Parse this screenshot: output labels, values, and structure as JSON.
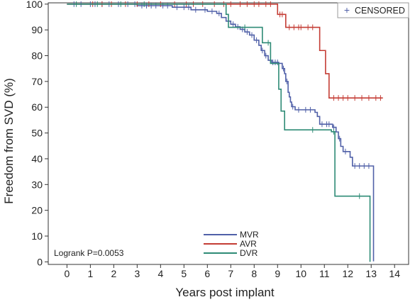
{
  "chart_data": {
    "type": "line",
    "subtype": "kaplan-meier",
    "xlabel": "Years post implant",
    "ylabel": "Freedom from SVD (%)",
    "xlim": [
      -0.8,
      14.6
    ],
    "ylim": [
      -1,
      100.5
    ],
    "x_ticks": [
      "0",
      "1",
      "2",
      "3",
      "4",
      "5",
      "6",
      "7",
      "8",
      "9",
      "10",
      "11",
      "12",
      "13",
      "14"
    ],
    "y_ticks": [
      "0",
      "10",
      "20",
      "30",
      "40",
      "50",
      "60",
      "70",
      "80",
      "90",
      "100"
    ],
    "grid": false,
    "legend_top_right": {
      "marker": "+",
      "label": "CENSORED"
    },
    "legend_position": "bottom-center",
    "annotation": "Logrank P=0.0053",
    "series": [
      {
        "name": "MVR",
        "color": "#5060a8",
        "steps": [
          [
            0,
            100
          ],
          [
            3,
            99.4
          ],
          [
            4.5,
            98.8
          ],
          [
            5.3,
            97.8
          ],
          [
            6,
            97.2
          ],
          [
            6.4,
            96.4
          ],
          [
            6.6,
            94.8
          ],
          [
            6.8,
            93.4
          ],
          [
            7,
            92.2
          ],
          [
            7.2,
            91.2
          ],
          [
            7.4,
            90.2
          ],
          [
            7.6,
            89.2
          ],
          [
            7.8,
            88
          ],
          [
            8,
            86
          ],
          [
            8.2,
            84
          ],
          [
            8.3,
            82
          ],
          [
            8.45,
            80
          ],
          [
            8.6,
            78.2
          ],
          [
            8.75,
            77.4
          ],
          [
            9.05,
            77
          ],
          [
            9.2,
            75
          ],
          [
            9.3,
            73
          ],
          [
            9.35,
            70
          ],
          [
            9.45,
            65.8
          ],
          [
            9.5,
            64
          ],
          [
            9.55,
            62
          ],
          [
            9.6,
            60.2
          ],
          [
            9.75,
            59
          ],
          [
            10.6,
            58
          ],
          [
            10.7,
            56.4
          ],
          [
            10.8,
            53.4
          ],
          [
            11.35,
            52.2
          ],
          [
            11.5,
            50.4
          ],
          [
            11.6,
            47.8
          ],
          [
            11.7,
            44.8
          ],
          [
            11.8,
            42.8
          ],
          [
            12.1,
            40.6
          ],
          [
            12.2,
            37.2
          ],
          [
            13.1,
            0.2
          ]
        ],
        "censored": [
          0.3,
          0.6,
          1,
          1.2,
          1.5,
          1.8,
          2.2,
          2.6,
          2.9,
          3.2,
          3.4,
          3.6,
          3.8,
          4.1,
          4.3,
          4.7,
          5,
          5.2,
          5.5,
          5.9,
          6.2,
          6.5,
          6.9,
          7.1,
          7.3,
          7.5,
          7.7,
          7.9,
          8.1,
          8.35,
          8.5,
          8.7,
          8.8,
          8.9,
          9,
          9.25,
          9.4,
          9.65,
          9.9,
          10.2,
          10.4,
          10.9,
          11.1,
          11.2,
          11.4,
          11.65,
          11.9,
          12.3,
          12.5,
          12.7,
          12.9
        ]
      },
      {
        "name": "AVR",
        "color": "#c43c34",
        "steps": [
          [
            0,
            100
          ],
          [
            9,
            96
          ],
          [
            9.35,
            91
          ],
          [
            10.8,
            82
          ],
          [
            11.05,
            73
          ],
          [
            11.2,
            63.6
          ],
          [
            13.5,
            63.6
          ]
        ],
        "censored": [
          1.1,
          1.5,
          1.9,
          2.5,
          3,
          3.5,
          4,
          4.6,
          5.1,
          5.4,
          5.8,
          6.3,
          6.7,
          7,
          7.4,
          7.7,
          8,
          8.2,
          8.5,
          8.7,
          9.1,
          9.2,
          9.5,
          9.7,
          9.9,
          10,
          10.3,
          10.5,
          11.4,
          11.6,
          11.8,
          12,
          12.3,
          12.6,
          12.9,
          13.2,
          13.4
        ]
      },
      {
        "name": "DVR",
        "color": "#2e8b76",
        "steps": [
          [
            0,
            100
          ],
          [
            6.8,
            96
          ],
          [
            6.9,
            91
          ],
          [
            8.35,
            85
          ],
          [
            8.7,
            77
          ],
          [
            9.05,
            67
          ],
          [
            9.15,
            58.5
          ],
          [
            9.3,
            51.2
          ],
          [
            11.3,
            50.5
          ],
          [
            11.45,
            25.5
          ],
          [
            12.95,
            0
          ]
        ],
        "censored": [
          0.4,
          1.3,
          2.3,
          3.3,
          7.6,
          8.6,
          10.5,
          11.4,
          12.5
        ]
      }
    ]
  }
}
